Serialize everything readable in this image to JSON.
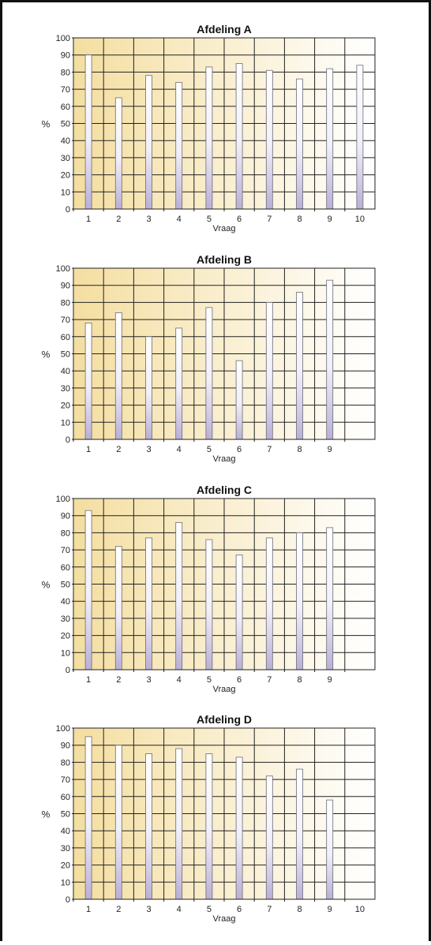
{
  "chart_data": [
    {
      "type": "bar",
      "title": "Afdeling A",
      "xlabel": "Vraag",
      "ylabel": "%",
      "ylim": [
        0,
        100
      ],
      "yticks": [
        0,
        10,
        20,
        30,
        40,
        50,
        60,
        70,
        80,
        90,
        100
      ],
      "categories": [
        "1",
        "2",
        "3",
        "4",
        "5",
        "6",
        "7",
        "8",
        "9",
        "10"
      ],
      "values": [
        90,
        65,
        78,
        74,
        83,
        85,
        81,
        76,
        82,
        84
      ],
      "grid": true,
      "legend": "none",
      "colors": {
        "bar_top": "#ffffff",
        "bar_bottom": "#b9b0d6",
        "bg_left": "#f4dea0",
        "bg_right": "#ffffff"
      }
    },
    {
      "type": "bar",
      "title": "Afdeling B",
      "xlabel": "Vraag",
      "ylabel": "%",
      "ylim": [
        0,
        100
      ],
      "yticks": [
        0,
        10,
        20,
        30,
        40,
        50,
        60,
        70,
        80,
        90,
        100
      ],
      "categories": [
        "1",
        "2",
        "3",
        "4",
        "5",
        "6",
        "7",
        "8",
        "9",
        ""
      ],
      "values": [
        68,
        74,
        60,
        65,
        77,
        46,
        80,
        86,
        93,
        null
      ],
      "grid": true,
      "legend": "none",
      "colors": {
        "bar_top": "#ffffff",
        "bar_bottom": "#b9b0d6",
        "bg_left": "#f4dea0",
        "bg_right": "#ffffff"
      }
    },
    {
      "type": "bar",
      "title": "Afdeling C",
      "xlabel": "Vraag",
      "ylabel": "%",
      "ylim": [
        0,
        100
      ],
      "yticks": [
        0,
        10,
        20,
        30,
        40,
        50,
        60,
        70,
        80,
        90,
        100
      ],
      "categories": [
        "1",
        "2",
        "3",
        "4",
        "5",
        "6",
        "7",
        "8",
        "9",
        ""
      ],
      "values": [
        93,
        72,
        77,
        86,
        76,
        67,
        77,
        80,
        83,
        null
      ],
      "grid": true,
      "legend": "none",
      "colors": {
        "bar_top": "#ffffff",
        "bar_bottom": "#b9b0d6",
        "bg_left": "#f4dea0",
        "bg_right": "#ffffff"
      }
    },
    {
      "type": "bar",
      "title": "Afdeling D",
      "xlabel": "Vraag",
      "ylabel": "%",
      "ylim": [
        0,
        100
      ],
      "yticks": [
        0,
        10,
        20,
        30,
        40,
        50,
        60,
        70,
        80,
        90,
        100
      ],
      "categories": [
        "1",
        "2",
        "3",
        "4",
        "5",
        "6",
        "7",
        "8",
        "9",
        "10"
      ],
      "values": [
        95,
        90,
        85,
        88,
        85,
        83,
        72,
        76,
        58,
        null
      ],
      "grid": true,
      "legend": "none",
      "colors": {
        "bar_top": "#ffffff",
        "bar_bottom": "#b9b0d6",
        "bg_left": "#f4dea0",
        "bg_right": "#ffffff"
      }
    }
  ]
}
